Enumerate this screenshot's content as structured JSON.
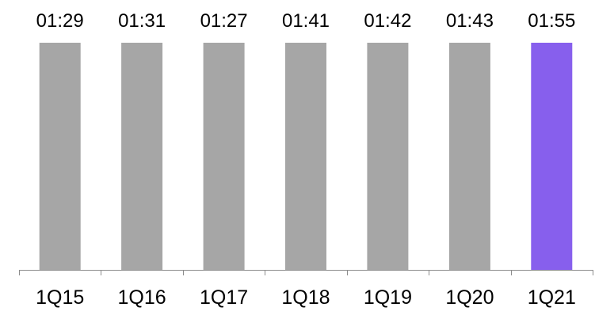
{
  "chart_data": {
    "type": "bar",
    "categories": [
      "1Q15",
      "1Q16",
      "1Q17",
      "1Q18",
      "1Q19",
      "1Q20",
      "1Q21"
    ],
    "values": [
      "01:29",
      "01:31",
      "01:27",
      "01:41",
      "01:42",
      "01:43",
      "01:55"
    ],
    "data_labels": [
      "01:29",
      "01:31",
      "01:27",
      "01:41",
      "01:42",
      "01:43",
      "01:55"
    ],
    "title": "",
    "xlabel": "",
    "ylabel": "",
    "y_axis_visible": false,
    "grid": false,
    "legend": "none",
    "colors": {
      "default_bar": "#a6a6a6",
      "highlight_bar": "#875fed",
      "axis": "#8c8c8c"
    },
    "highlight_index": 6,
    "note": "All bars are drawn at equal height in the original despite differing values."
  }
}
